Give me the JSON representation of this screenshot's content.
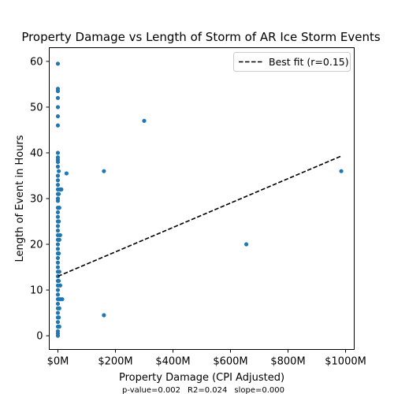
{
  "chart_data": {
    "type": "scatter",
    "title": "Property Damage vs Length of Storm of AR Ice Storm Events",
    "xlabel": "Property Damage (CPI Adjusted)",
    "ylabel": "Length of Event in Hours",
    "xlim": [
      -30,
      1030
    ],
    "ylim": [
      -3,
      63
    ],
    "x_ticks": [
      0,
      200,
      400,
      600,
      800,
      1000
    ],
    "x_tick_labels": [
      "$0M",
      "$200M",
      "$400M",
      "$600M",
      "$800M",
      "$1000M"
    ],
    "y_ticks": [
      0,
      10,
      20,
      30,
      40,
      50,
      60
    ],
    "y_tick_labels": [
      "0",
      "10",
      "20",
      "30",
      "40",
      "50",
      "60"
    ],
    "grid": false,
    "legend_position": "upper-right",
    "point_color": "#1f77b4",
    "fit_color": "#000000",
    "series": [
      {
        "name": "",
        "kind": "scatter",
        "points": [
          [
            0,
            59.5
          ],
          [
            0,
            54
          ],
          [
            0,
            53.5
          ],
          [
            0,
            52
          ],
          [
            0,
            50
          ],
          [
            0,
            48
          ],
          [
            0,
            46
          ],
          [
            0,
            40
          ],
          [
            0,
            39
          ],
          [
            0,
            38.5
          ],
          [
            0,
            38
          ],
          [
            0,
            37
          ],
          [
            0,
            35
          ],
          [
            0,
            34
          ],
          [
            0,
            33
          ],
          [
            0,
            32
          ],
          [
            0,
            31
          ],
          [
            0,
            30
          ],
          [
            0,
            29.5
          ],
          [
            0,
            28
          ],
          [
            0,
            27
          ],
          [
            0,
            26
          ],
          [
            0,
            25
          ],
          [
            0,
            24
          ],
          [
            0,
            23
          ],
          [
            0,
            22
          ],
          [
            0,
            21
          ],
          [
            0,
            20
          ],
          [
            0,
            19
          ],
          [
            0,
            18
          ],
          [
            0,
            17
          ],
          [
            0,
            16
          ],
          [
            0,
            15
          ],
          [
            0,
            14
          ],
          [
            0,
            13
          ],
          [
            0,
            12
          ],
          [
            0,
            11
          ],
          [
            0,
            10
          ],
          [
            0,
            9
          ],
          [
            0,
            8
          ],
          [
            0,
            7
          ],
          [
            0,
            6
          ],
          [
            0,
            5
          ],
          [
            0,
            4
          ],
          [
            0,
            3
          ],
          [
            0,
            2
          ],
          [
            0,
            1
          ],
          [
            0,
            0.5
          ],
          [
            0,
            0
          ],
          [
            3,
            36
          ],
          [
            3,
            31
          ],
          [
            3,
            25
          ],
          [
            3,
            18
          ],
          [
            3,
            12
          ],
          [
            3,
            8
          ],
          [
            3,
            4
          ],
          [
            5,
            28
          ],
          [
            5,
            21
          ],
          [
            5,
            14
          ],
          [
            5,
            6
          ],
          [
            5,
            2
          ],
          [
            8,
            32
          ],
          [
            8,
            22
          ],
          [
            8,
            11
          ],
          [
            8,
            8
          ],
          [
            12,
            32
          ],
          [
            15,
            8
          ],
          [
            30,
            35.5
          ],
          [
            160,
            36
          ],
          [
            160,
            4.5
          ],
          [
            300,
            47
          ],
          [
            655,
            20
          ],
          [
            985,
            36
          ]
        ]
      },
      {
        "name": "Best fit (r=0.15)",
        "kind": "line",
        "style": "dashed",
        "x": [
          0,
          985
        ],
        "y": [
          13,
          39.3
        ]
      }
    ],
    "footnote": {
      "p_value": "p-value=0.002",
      "r2": "R2=0.024",
      "slope": "slope=0.000"
    }
  }
}
